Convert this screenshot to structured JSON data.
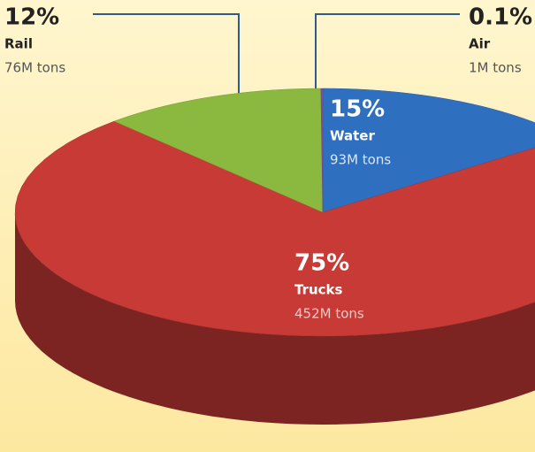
{
  "chart_data": {
    "type": "pie",
    "categories": [
      "Water",
      "Trucks",
      "Rail",
      "Air"
    ],
    "values": [
      15,
      75,
      12,
      0.1
    ],
    "value_labels": [
      "15%",
      "75%",
      "12%",
      "0.1%"
    ],
    "tons_labels": [
      "93M tons",
      "452M tons",
      "76M tons",
      "1M tons"
    ],
    "colors": [
      "#2f6fc0",
      "#c73a36",
      "#8bb83e",
      "#7a52a8"
    ]
  }
}
